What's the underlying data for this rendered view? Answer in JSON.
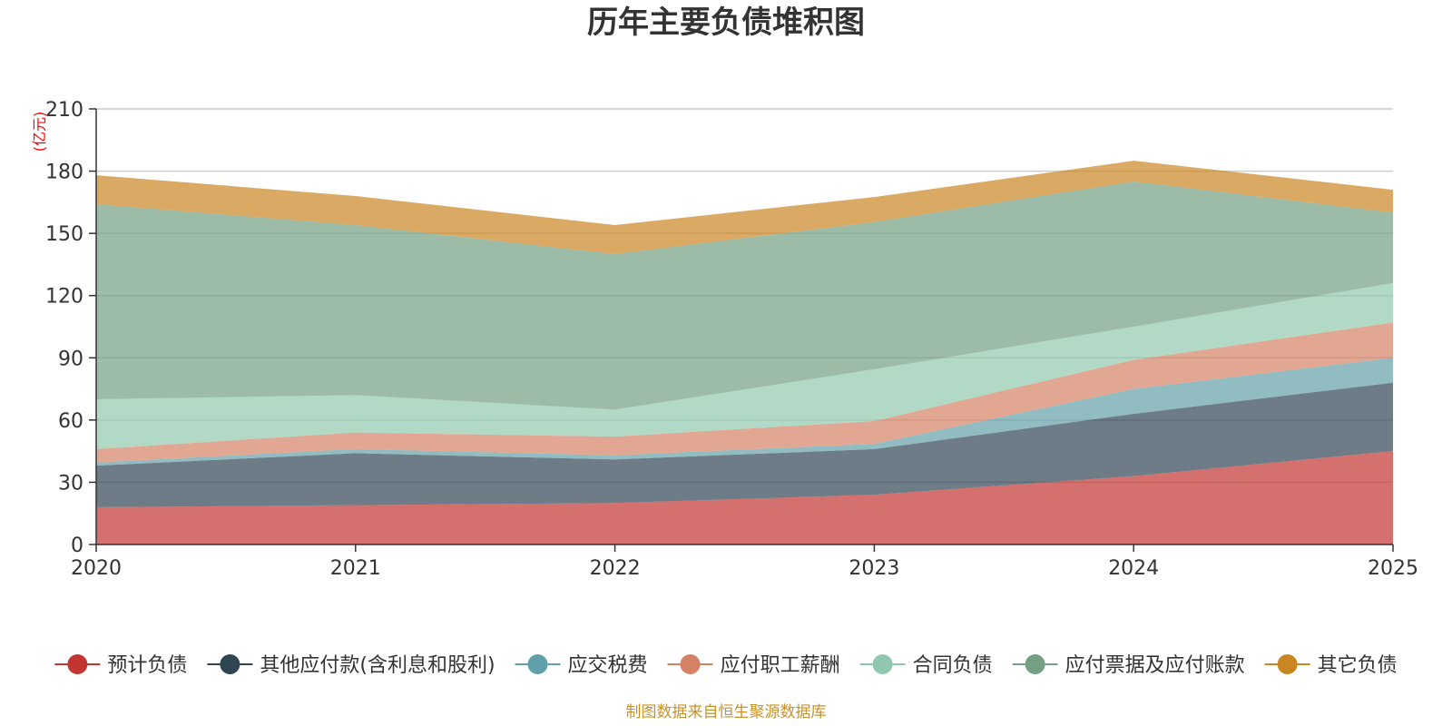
{
  "chart_data": {
    "type": "area",
    "stacked": true,
    "title": "历年主要负债堆积图",
    "unit_label": "(亿元)",
    "xlabel": "",
    "ylabel": "",
    "x": [
      "2020",
      "2021",
      "2022",
      "2023",
      "2024",
      "2025"
    ],
    "ylim": [
      0,
      210
    ],
    "yticks": [
      0,
      30,
      60,
      90,
      120,
      150,
      180,
      210
    ],
    "grid": true,
    "legend_position": "bottom",
    "source": "制图数据来自恒生聚源数据库",
    "series": [
      {
        "name": "预计负债",
        "color": "#c23531",
        "values": [
          18,
          19,
          20,
          24,
          33,
          45
        ]
      },
      {
        "name": "其他应付款(含利息和股利)",
        "color": "#2f4554",
        "values": [
          20,
          25,
          21,
          22,
          30,
          33
        ]
      },
      {
        "name": "应交税费",
        "color": "#61a0a8",
        "values": [
          1.5,
          2,
          2,
          2.5,
          12,
          12
        ]
      },
      {
        "name": "应付职工薪酬",
        "color": "#d48265",
        "values": [
          6.5,
          8,
          9,
          11,
          14,
          17
        ]
      },
      {
        "name": "合同负债",
        "color": "#91c7ae",
        "values": [
          24,
          18,
          13,
          25,
          16,
          19
        ]
      },
      {
        "name": "应付票据及应付账款",
        "color": "#749f83",
        "values": [
          94,
          82,
          75,
          71,
          70,
          34
        ]
      },
      {
        "name": "其它负债",
        "color": "#ca8622",
        "values": [
          14,
          14,
          14,
          12,
          10,
          11
        ]
      }
    ]
  }
}
